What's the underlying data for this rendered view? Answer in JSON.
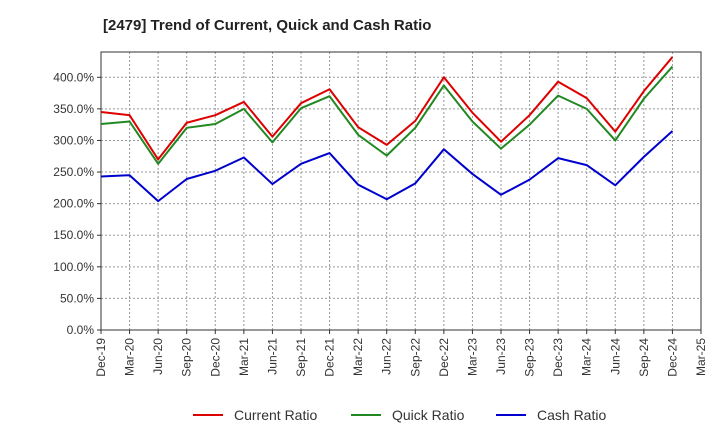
{
  "chart_data": {
    "type": "line",
    "title": "[2479]  Trend of Current, Quick and Cash Ratio",
    "xlabel": "",
    "ylabel": "",
    "ylim": [
      0,
      440
    ],
    "y_ticks": [
      0,
      50,
      100,
      150,
      200,
      250,
      300,
      350,
      400
    ],
    "y_tick_labels": [
      "0.0%",
      "50.0%",
      "100.0%",
      "150.0%",
      "200.0%",
      "250.0%",
      "300.0%",
      "350.0%",
      "400.0%"
    ],
    "x_tick_labels": [
      "Dec-19",
      "Mar-20",
      "Jun-20",
      "Sep-20",
      "Dec-20",
      "Mar-21",
      "Jun-21",
      "Sep-21",
      "Dec-21",
      "Mar-22",
      "Jun-22",
      "Sep-22",
      "Dec-22",
      "Mar-23",
      "Jun-23",
      "Sep-23",
      "Dec-23",
      "Mar-24",
      "Jun-24",
      "Sep-24",
      "Dec-24",
      "Mar-25"
    ],
    "categories": [
      "Dec-19",
      "Mar-20",
      "Jun-20",
      "Sep-20",
      "Dec-20",
      "Mar-21",
      "Jun-21",
      "Sep-21",
      "Dec-21",
      "Mar-22",
      "Jun-22",
      "Sep-22",
      "Dec-22",
      "Mar-23",
      "Jun-23",
      "Sep-23",
      "Dec-23",
      "Mar-24",
      "Jun-24",
      "Sep-24",
      "Dec-24"
    ],
    "grid": true,
    "legend_position": "bottom",
    "series": [
      {
        "name": "Current Ratio",
        "color": "#dd0000",
        "values": [
          345,
          340,
          270,
          328,
          340,
          361,
          306,
          359,
          381,
          321,
          293,
          331,
          400,
          344,
          298,
          340,
          393,
          367,
          314,
          378,
          432
        ]
      },
      {
        "name": "Quick Ratio",
        "color": "#228822",
        "values": [
          326,
          330,
          263,
          320,
          326,
          350,
          297,
          351,
          370,
          309,
          276,
          320,
          387,
          330,
          287,
          325,
          371,
          350,
          300,
          366,
          417
        ]
      },
      {
        "name": "Cash Ratio",
        "color": "#0000cc",
        "values": [
          243,
          245,
          204,
          239,
          252,
          273,
          231,
          263,
          280,
          230,
          207,
          232,
          286,
          247,
          214,
          238,
          272,
          261,
          229,
          274,
          315
        ]
      }
    ]
  }
}
